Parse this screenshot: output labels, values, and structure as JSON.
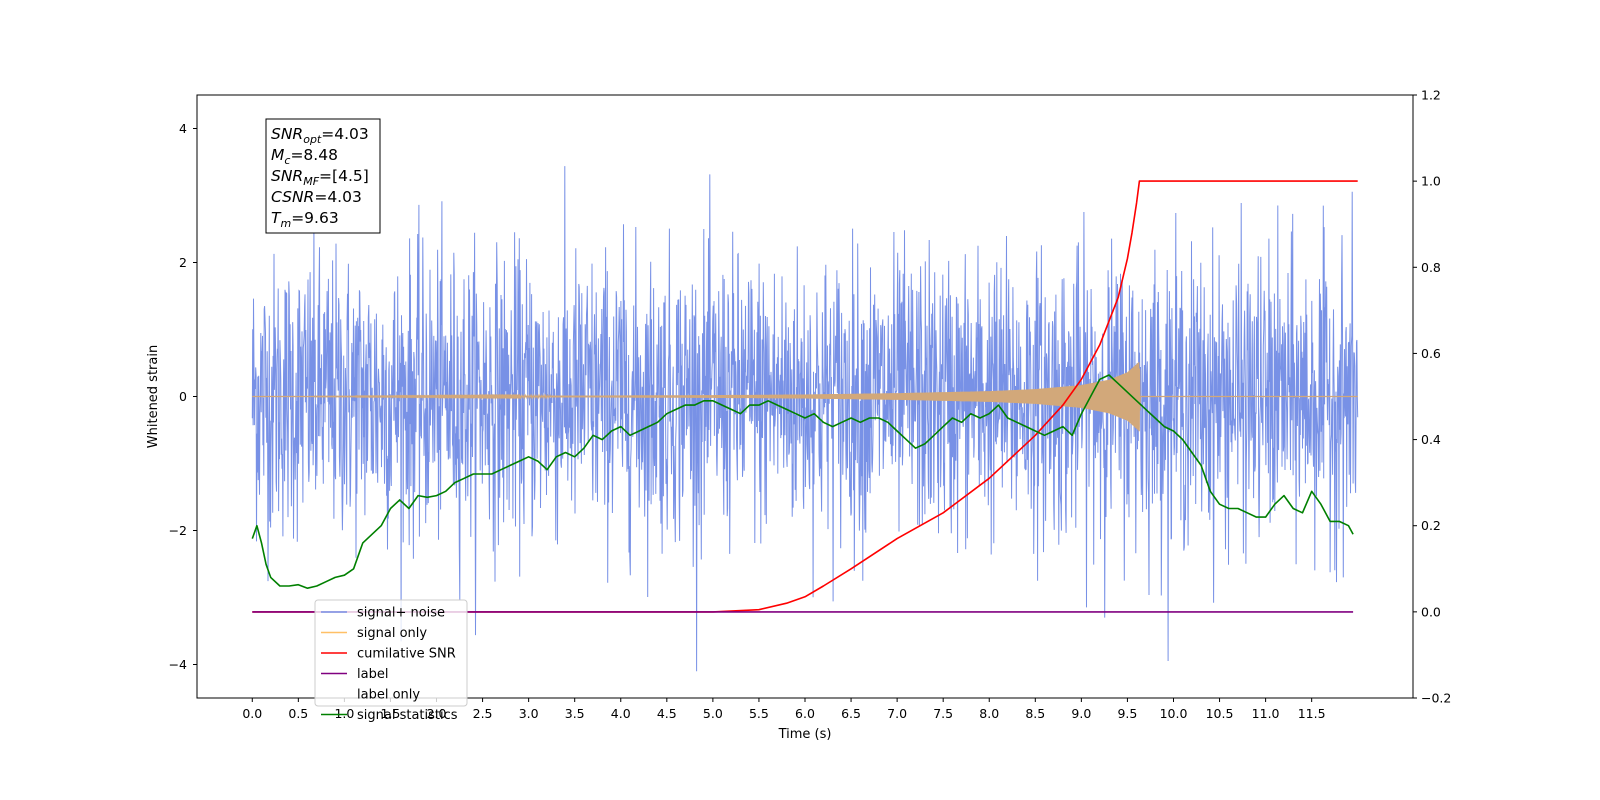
{
  "chart_data": {
    "type": "line",
    "xlabel": "Time (s)",
    "ylabel": "Whitened strain",
    "xlim": [
      -0.6,
      12.6
    ],
    "ylim": [
      -4.5,
      4.5
    ],
    "y2lim": [
      -0.2,
      1.2
    ],
    "x_ticks": [
      0.0,
      0.5,
      1.0,
      1.5,
      2.0,
      2.5,
      3.0,
      3.5,
      4.0,
      4.5,
      5.0,
      5.5,
      6.0,
      6.5,
      7.0,
      7.5,
      8.0,
      8.5,
      9.0,
      9.5,
      10.0,
      10.5,
      11.0,
      11.5
    ],
    "x_tick_labels": [
      "0.0",
      "0.5",
      "1.0",
      "1.5",
      "2.0",
      "2.5",
      "3.0",
      "3.5",
      "4.0",
      "4.5",
      "5.0",
      "5.5",
      "6.0",
      "6.5",
      "7.0",
      "7.5",
      "8.0",
      "8.5",
      "9.0",
      "9.5",
      "10.0",
      "10.5",
      "11.0",
      "11.5"
    ],
    "y_ticks": [
      -4,
      -2,
      0,
      2,
      4
    ],
    "y_tick_labels": [
      "−4",
      "−2",
      "0",
      "2",
      "4"
    ],
    "y2_ticks": [
      -0.2,
      0.0,
      0.2,
      0.4,
      0.6,
      0.8,
      1.0,
      1.2
    ],
    "y2_tick_labels": [
      "−0.2",
      "0.0",
      "0.2",
      "0.4",
      "0.6",
      "0.8",
      "1.0",
      "1.2"
    ],
    "grid": false,
    "legend_position": "lower-left",
    "annotation": {
      "lines": [
        {
          "main": "SNR",
          "sub": "opt",
          "value": "=4.03"
        },
        {
          "main": "M",
          "sub": "c",
          "value": "=8.48"
        },
        {
          "main": "SNR",
          "sub": "MF",
          "value": "=[4.5]"
        },
        {
          "main": "CSNR",
          "sub": "",
          "value": "=4.03"
        },
        {
          "main": "T",
          "sub": "m",
          "value": "=9.63"
        }
      ]
    },
    "series": [
      {
        "name": "signal+ noise",
        "color": "#7891e6",
        "axis": "left",
        "style": "noise",
        "x_range": [
          0.0,
          12.0
        ],
        "mean": 0.0,
        "std": 1.0,
        "max": 4.1,
        "min": -4.1
      },
      {
        "name": "signal only",
        "color": "#ffc066",
        "display_color": "#d2a87a",
        "axis": "left",
        "style": "chirp",
        "x_range": [
          0.0,
          12.0
        ],
        "merger_time": 9.63,
        "envelope": {
          "x": [
            0.0,
            3.0,
            5.0,
            6.0,
            7.0,
            8.0,
            8.5,
            9.0,
            9.3,
            9.5,
            9.6,
            9.63,
            9.64,
            12.0
          ],
          "amp": [
            0.0,
            0.01,
            0.02,
            0.03,
            0.05,
            0.08,
            0.11,
            0.17,
            0.25,
            0.36,
            0.48,
            0.52,
            0.0,
            0.0
          ]
        }
      },
      {
        "name": "cumilative SNR",
        "color": "#ff0000",
        "axis": "right",
        "x": [
          0.0,
          5.0,
          5.5,
          5.8,
          6.0,
          6.2,
          6.5,
          7.0,
          7.5,
          8.0,
          8.5,
          8.8,
          9.0,
          9.2,
          9.4,
          9.5,
          9.55,
          9.6,
          9.63,
          9.65,
          12.0
        ],
        "y": [
          0.0,
          0.0,
          0.005,
          0.02,
          0.035,
          0.06,
          0.1,
          0.17,
          0.23,
          0.31,
          0.41,
          0.48,
          0.54,
          0.62,
          0.73,
          0.82,
          0.88,
          0.95,
          1.0,
          1.0,
          1.0
        ]
      },
      {
        "name": "label",
        "color": "#800080",
        "axis": "right",
        "x": [
          0.0,
          11.95
        ],
        "y": [
          0.0,
          0.0
        ]
      },
      {
        "name": "label only",
        "color": "#cccccc",
        "axis": "right",
        "hidden": true,
        "x": [],
        "y": []
      },
      {
        "name": "signal statistics",
        "color": "#008000",
        "axis": "right",
        "x": [
          0.0,
          0.05,
          0.1,
          0.15,
          0.2,
          0.3,
          0.4,
          0.5,
          0.6,
          0.7,
          0.8,
          0.9,
          1.0,
          1.1,
          1.2,
          1.3,
          1.4,
          1.5,
          1.6,
          1.7,
          1.8,
          1.9,
          2.0,
          2.1,
          2.2,
          2.3,
          2.4,
          2.5,
          2.6,
          2.7,
          2.8,
          2.9,
          3.0,
          3.1,
          3.2,
          3.3,
          3.4,
          3.5,
          3.6,
          3.7,
          3.8,
          3.9,
          4.0,
          4.1,
          4.2,
          4.3,
          4.4,
          4.5,
          4.6,
          4.7,
          4.8,
          4.9,
          5.0,
          5.1,
          5.2,
          5.3,
          5.4,
          5.5,
          5.6,
          5.7,
          5.8,
          5.9,
          6.0,
          6.1,
          6.2,
          6.3,
          6.4,
          6.5,
          6.6,
          6.7,
          6.8,
          6.9,
          7.0,
          7.1,
          7.2,
          7.3,
          7.4,
          7.5,
          7.6,
          7.7,
          7.8,
          7.9,
          8.0,
          8.1,
          8.2,
          8.3,
          8.4,
          8.5,
          8.6,
          8.7,
          8.8,
          8.9,
          9.0,
          9.1,
          9.2,
          9.3,
          9.4,
          9.5,
          9.6,
          9.7,
          9.8,
          9.9,
          10.0,
          10.1,
          10.2,
          10.3,
          10.4,
          10.5,
          10.6,
          10.7,
          10.8,
          10.9,
          11.0,
          11.1,
          11.2,
          11.3,
          11.4,
          11.5,
          11.6,
          11.7,
          11.8,
          11.9,
          11.95
        ],
        "y": [
          0.17,
          0.2,
          0.16,
          0.11,
          0.08,
          0.06,
          0.06,
          0.063,
          0.055,
          0.06,
          0.07,
          0.08,
          0.085,
          0.1,
          0.16,
          0.18,
          0.2,
          0.24,
          0.26,
          0.24,
          0.27,
          0.266,
          0.27,
          0.28,
          0.3,
          0.31,
          0.32,
          0.32,
          0.32,
          0.33,
          0.34,
          0.35,
          0.36,
          0.35,
          0.33,
          0.36,
          0.37,
          0.36,
          0.38,
          0.41,
          0.4,
          0.42,
          0.43,
          0.41,
          0.42,
          0.43,
          0.44,
          0.46,
          0.47,
          0.48,
          0.48,
          0.49,
          0.49,
          0.48,
          0.47,
          0.46,
          0.48,
          0.48,
          0.49,
          0.48,
          0.47,
          0.46,
          0.45,
          0.46,
          0.44,
          0.43,
          0.44,
          0.45,
          0.44,
          0.45,
          0.45,
          0.44,
          0.42,
          0.4,
          0.38,
          0.39,
          0.41,
          0.43,
          0.45,
          0.44,
          0.46,
          0.45,
          0.46,
          0.48,
          0.45,
          0.44,
          0.43,
          0.42,
          0.41,
          0.42,
          0.43,
          0.41,
          0.46,
          0.5,
          0.54,
          0.55,
          0.53,
          0.51,
          0.49,
          0.47,
          0.45,
          0.43,
          0.42,
          0.4,
          0.37,
          0.34,
          0.28,
          0.25,
          0.24,
          0.24,
          0.23,
          0.22,
          0.22,
          0.25,
          0.27,
          0.24,
          0.23,
          0.28,
          0.25,
          0.21,
          0.21,
          0.2,
          0.18
        ]
      }
    ]
  }
}
